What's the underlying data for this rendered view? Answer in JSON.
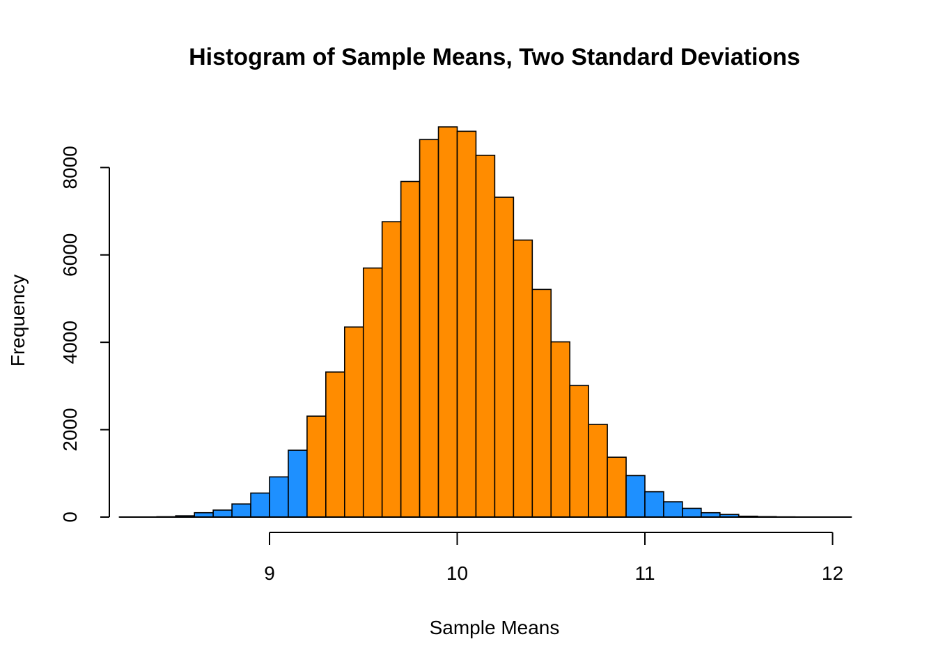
{
  "chart_data": {
    "type": "bar",
    "title": "Histogram of Sample Means, Two Standard Deviations",
    "xlabel": "Sample Means",
    "ylabel": "Frequency",
    "xlim": [
      8.25,
      12.1
    ],
    "ylim": [
      0,
      9000
    ],
    "bin_width": 0.1,
    "x_ticks": [
      9,
      10,
      11,
      12
    ],
    "x_tick_labels": [
      "9",
      "10",
      "11",
      "12"
    ],
    "y_ticks": [
      0,
      2000,
      4000,
      6000,
      8000
    ],
    "y_tick_labels": [
      "0",
      "2000",
      "4000",
      "6000",
      "8000"
    ],
    "colors": {
      "within_two_sd": "#FF8C00",
      "outside_two_sd": "#1E90FF"
    },
    "bins": [
      {
        "start": 8.2,
        "end": 8.3,
        "count": 1,
        "group": "outside_two_sd"
      },
      {
        "start": 8.3,
        "end": 8.4,
        "count": 3,
        "group": "outside_two_sd"
      },
      {
        "start": 8.4,
        "end": 8.5,
        "count": 8,
        "group": "outside_two_sd"
      },
      {
        "start": 8.5,
        "end": 8.6,
        "count": 30,
        "group": "outside_two_sd"
      },
      {
        "start": 8.6,
        "end": 8.7,
        "count": 100,
        "group": "outside_two_sd"
      },
      {
        "start": 8.7,
        "end": 8.8,
        "count": 160,
        "group": "outside_two_sd"
      },
      {
        "start": 8.8,
        "end": 8.9,
        "count": 300,
        "group": "outside_two_sd"
      },
      {
        "start": 8.9,
        "end": 9.0,
        "count": 550,
        "group": "outside_two_sd"
      },
      {
        "start": 9.0,
        "end": 9.1,
        "count": 920,
        "group": "outside_two_sd"
      },
      {
        "start": 9.1,
        "end": 9.2,
        "count": 1530,
        "group": "outside_two_sd"
      },
      {
        "start": 9.2,
        "end": 9.3,
        "count": 2310,
        "group": "within_two_sd"
      },
      {
        "start": 9.3,
        "end": 9.4,
        "count": 3320,
        "group": "within_two_sd"
      },
      {
        "start": 9.4,
        "end": 9.5,
        "count": 4350,
        "group": "within_two_sd"
      },
      {
        "start": 9.5,
        "end": 9.6,
        "count": 5700,
        "group": "within_two_sd"
      },
      {
        "start": 9.6,
        "end": 9.7,
        "count": 6760,
        "group": "within_two_sd"
      },
      {
        "start": 9.7,
        "end": 9.8,
        "count": 7680,
        "group": "within_two_sd"
      },
      {
        "start": 9.8,
        "end": 9.9,
        "count": 8640,
        "group": "within_two_sd"
      },
      {
        "start": 9.9,
        "end": 10.0,
        "count": 8930,
        "group": "within_two_sd"
      },
      {
        "start": 10.0,
        "end": 10.1,
        "count": 8830,
        "group": "within_two_sd"
      },
      {
        "start": 10.1,
        "end": 10.2,
        "count": 8280,
        "group": "within_two_sd"
      },
      {
        "start": 10.2,
        "end": 10.3,
        "count": 7320,
        "group": "within_two_sd"
      },
      {
        "start": 10.3,
        "end": 10.4,
        "count": 6340,
        "group": "within_two_sd"
      },
      {
        "start": 10.4,
        "end": 10.5,
        "count": 5210,
        "group": "within_two_sd"
      },
      {
        "start": 10.5,
        "end": 10.6,
        "count": 4010,
        "group": "within_two_sd"
      },
      {
        "start": 10.6,
        "end": 10.7,
        "count": 3010,
        "group": "within_two_sd"
      },
      {
        "start": 10.7,
        "end": 10.8,
        "count": 2120,
        "group": "within_two_sd"
      },
      {
        "start": 10.8,
        "end": 10.9,
        "count": 1370,
        "group": "within_two_sd"
      },
      {
        "start": 10.9,
        "end": 11.0,
        "count": 950,
        "group": "outside_two_sd"
      },
      {
        "start": 11.0,
        "end": 11.1,
        "count": 580,
        "group": "outside_two_sd"
      },
      {
        "start": 11.1,
        "end": 11.2,
        "count": 350,
        "group": "outside_two_sd"
      },
      {
        "start": 11.2,
        "end": 11.3,
        "count": 200,
        "group": "outside_two_sd"
      },
      {
        "start": 11.3,
        "end": 11.4,
        "count": 100,
        "group": "outside_two_sd"
      },
      {
        "start": 11.4,
        "end": 11.5,
        "count": 60,
        "group": "outside_two_sd"
      },
      {
        "start": 11.5,
        "end": 11.6,
        "count": 20,
        "group": "outside_two_sd"
      },
      {
        "start": 11.6,
        "end": 11.7,
        "count": 10,
        "group": "outside_two_sd"
      },
      {
        "start": 11.7,
        "end": 11.8,
        "count": 5,
        "group": "outside_two_sd"
      },
      {
        "start": 11.8,
        "end": 11.9,
        "count": 2,
        "group": "outside_two_sd"
      },
      {
        "start": 11.9,
        "end": 12.0,
        "count": 1,
        "group": "outside_two_sd"
      },
      {
        "start": 12.0,
        "end": 12.1,
        "count": 1,
        "group": "outside_two_sd"
      }
    ],
    "grid": false,
    "legend": "none"
  }
}
